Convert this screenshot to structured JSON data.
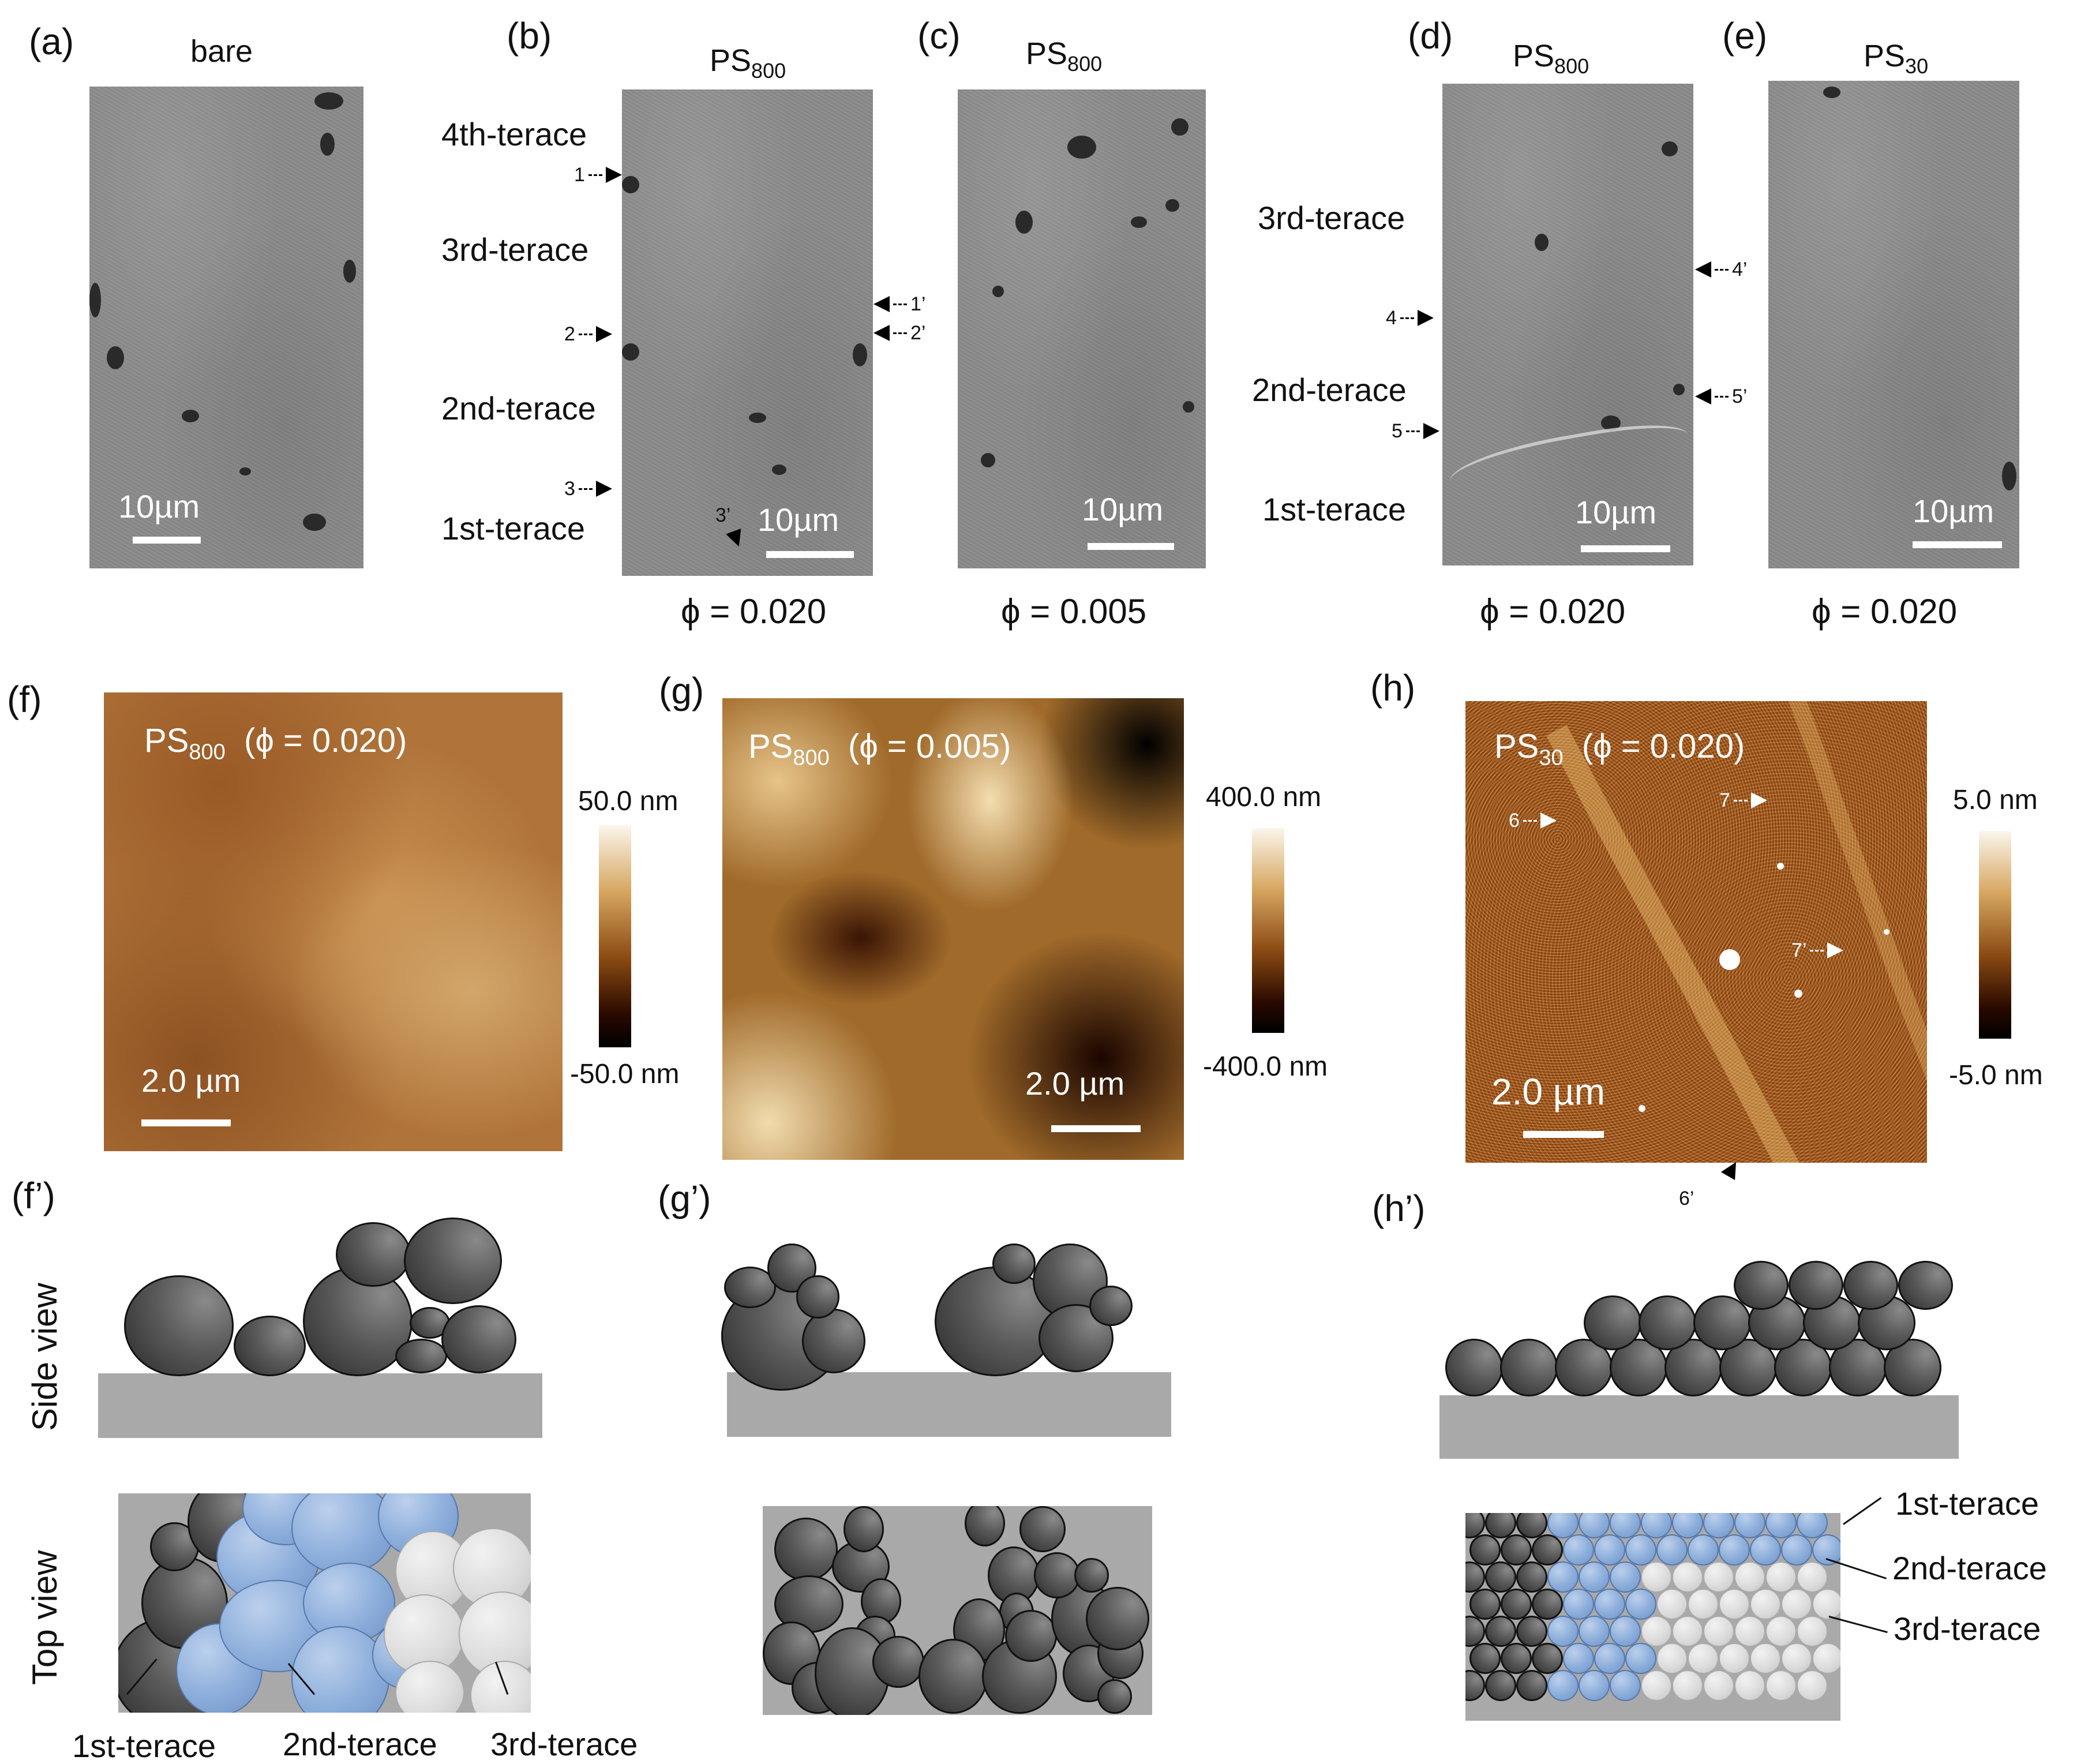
{
  "panels": {
    "a": {
      "label": "(a)",
      "title": "bare",
      "scale": "10µm"
    },
    "b": {
      "label": "(b)",
      "title": "PS",
      "title_sub": "800",
      "scale": "10µm",
      "phi": "ϕ = 0.020",
      "terraces": [
        "4th-terace",
        "3rd-terace",
        "2nd-terace",
        "1st-terace"
      ],
      "markers_left": [
        "1",
        "2",
        "3"
      ],
      "markers_right": [
        "1’",
        "2’"
      ],
      "marker_bottom": "3’"
    },
    "c": {
      "label": "(c)",
      "title": "PS",
      "title_sub": "800",
      "scale": "10µm",
      "phi": "ϕ = 0.005"
    },
    "d": {
      "label": "(d)",
      "title": "PS",
      "title_sub": "800",
      "scale": "10µm",
      "phi": "ϕ = 0.020",
      "terraces": [
        "3rd-terace",
        "2nd-terace",
        "1st-terace"
      ],
      "markers_left": [
        "4",
        "5"
      ],
      "markers_right": [
        "4’",
        "5’"
      ]
    },
    "e": {
      "label": "(e)",
      "title": "PS",
      "title_sub": "30",
      "scale": "10µm",
      "phi": "ϕ = 0.020"
    },
    "f": {
      "label": "(f)",
      "title_main": "PS",
      "title_sub": "800",
      "title_cond": "(ϕ = 0.020)",
      "scale": "2.0 µm",
      "cbar_max": "50.0 nm",
      "cbar_min": "-50.0 nm"
    },
    "g": {
      "label": "(g)",
      "title_main": "PS",
      "title_sub": "800",
      "title_cond": "(ϕ = 0.005)",
      "scale": "2.0 µm",
      "cbar_max": "400.0 nm",
      "cbar_min": "-400.0 nm"
    },
    "h": {
      "label": "(h)",
      "title_main": "PS",
      "title_sub": "30",
      "title_cond": "(ϕ = 0.020)",
      "scale": "2.0 µm",
      "cbar_max": "5.0 nm",
      "cbar_min": "-5.0 nm",
      "markers": [
        "6",
        "7",
        "7’",
        "6’"
      ]
    },
    "f_prime": {
      "label": "(f’)",
      "side_view": "Side view",
      "top_view": "Top view",
      "terraces": [
        "1st-terace",
        "2nd-terace",
        "3rd-terace"
      ]
    },
    "g_prime": {
      "label": "(g’)"
    },
    "h_prime": {
      "label": "(h’)",
      "terraces": [
        "1st-terace",
        "2nd-terace",
        "3rd-terace"
      ]
    }
  },
  "colors": {
    "sem_gray": "#8a8a8a",
    "terrace_blue": "#8fb0dc",
    "terrace_white": "#dcdcdc",
    "substrate": "#a9a9a9",
    "afm_brown": "#b06a2a"
  }
}
